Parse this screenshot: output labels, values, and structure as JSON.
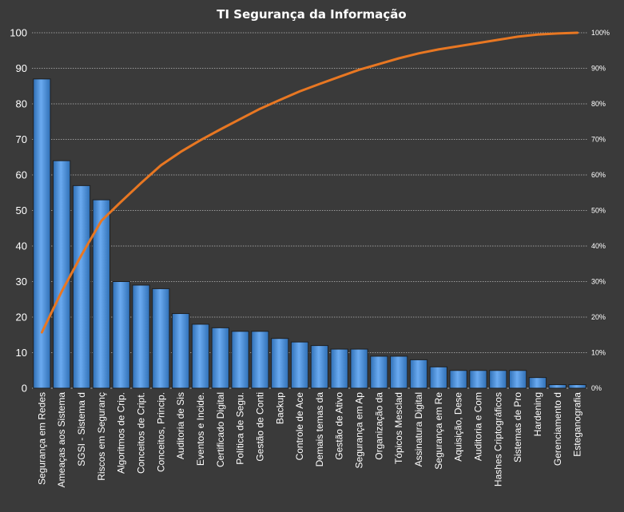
{
  "chart_data": {
    "type": "bar",
    "title": "TI Segurança da Informação",
    "xlabel": "",
    "ylabel": "",
    "categories": [
      "Segurança em Redes",
      "Ameaças aos Sistema",
      "SGSI - Sistema d",
      "Riscos em Seguranç",
      "Algoritmos de Crip.",
      "Conceitos de Cript.",
      "Conceitos, Princip.",
      "Auditoria de Sis",
      "Eventos e Incide.",
      "Certificado Digital",
      "Política de Segu.",
      "Gestão de Conti",
      "Backup",
      "Controle de Ace",
      "Demais temas da",
      "Gestão de Ativo",
      "Segurança em Ap",
      "Organização da",
      "Tópicos Mesclad",
      "Assinatura Digital",
      "Segurança em Re",
      "Aquisição, Dese",
      "Auditoria e Com",
      "Hashes Criptográficos",
      "Sistemas de Pro",
      "Hardening",
      "Gerenciamento d",
      "Esteganografia"
    ],
    "series": [
      {
        "type": "bar",
        "axis": "left",
        "color": "#4a90d9",
        "values": [
          87,
          64,
          57,
          53,
          30,
          29,
          28,
          21,
          18,
          17,
          16,
          16,
          14,
          13,
          12,
          11,
          11,
          9,
          9,
          8,
          6,
          5,
          5,
          5,
          5,
          3,
          1,
          1
        ]
      },
      {
        "type": "line",
        "axis": "right",
        "color": "#e87722",
        "values": [
          15.7,
          27.2,
          37.5,
          47.1,
          52.5,
          57.7,
          62.7,
          66.5,
          69.8,
          72.8,
          75.7,
          78.6,
          81.1,
          83.5,
          85.6,
          87.6,
          89.6,
          91.2,
          92.8,
          94.2,
          95.3,
          96.2,
          97.1,
          98.0,
          98.9,
          99.5,
          99.8,
          100.0
        ]
      }
    ],
    "ylim": [
      0,
      100
    ],
    "yticks": [
      "0",
      "10",
      "20",
      "30",
      "40",
      "50",
      "60",
      "70",
      "80",
      "90",
      "100"
    ],
    "y2lim": [
      0,
      100
    ],
    "y2ticks": [
      "0%",
      "10%",
      "20%",
      "30%",
      "40%",
      "50%",
      "60%",
      "70%",
      "80%",
      "90%",
      "100%"
    ],
    "grid": true,
    "colors": {
      "background": "#3a3a3a",
      "grid": "#d8d8d8",
      "text": "#ffffff",
      "bar_top": "#6aaaf0",
      "bar_bottom": "#2f6fb5",
      "line": "#e87722"
    }
  }
}
